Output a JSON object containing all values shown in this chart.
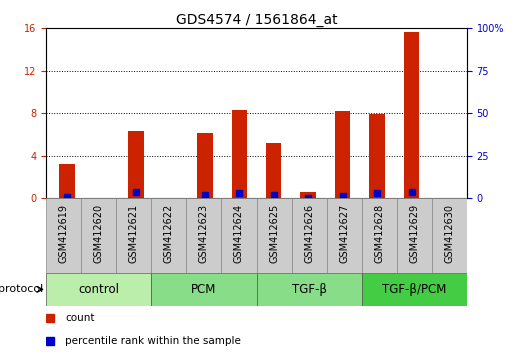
{
  "title": "GDS4574 / 1561864_at",
  "samples": [
    "GSM412619",
    "GSM412620",
    "GSM412621",
    "GSM412622",
    "GSM412623",
    "GSM412624",
    "GSM412625",
    "GSM412626",
    "GSM412627",
    "GSM412628",
    "GSM412629",
    "GSM412630"
  ],
  "count_values": [
    3.2,
    0.05,
    6.3,
    0.05,
    6.1,
    8.3,
    5.2,
    0.6,
    8.2,
    7.9,
    15.7,
    0.05
  ],
  "percentile_values": [
    0.5,
    0.0,
    3.9,
    0.0,
    2.0,
    2.9,
    1.8,
    0.4,
    1.6,
    3.1,
    3.8,
    0.0
  ],
  "bar_color": "#cc2200",
  "marker_color": "#0000cc",
  "ylim_left": [
    0,
    16
  ],
  "ylim_right": [
    0,
    100
  ],
  "yticks_left": [
    0,
    4,
    8,
    12,
    16
  ],
  "yticks_right": [
    0,
    25,
    50,
    75,
    100
  ],
  "groups": [
    {
      "label": "control",
      "start": 0,
      "end": 3,
      "color": "#bbeeaa"
    },
    {
      "label": "PCM",
      "start": 3,
      "end": 6,
      "color": "#88dd88"
    },
    {
      "label": "TGF-β",
      "start": 6,
      "end": 9,
      "color": "#88dd88"
    },
    {
      "label": "TGF-β/PCM",
      "start": 9,
      "end": 12,
      "color": "#44cc44"
    }
  ],
  "protocol_label": "protocol",
  "legend_count": "count",
  "legend_percentile": "percentile rank within the sample",
  "bar_width": 0.45,
  "marker_size": 5,
  "grid_color": "#000000",
  "background_color": "#ffffff",
  "left_tick_color": "#cc2200",
  "right_tick_color": "#0000cc",
  "title_fontsize": 10,
  "tick_label_fontsize": 7,
  "legend_fontsize": 7.5,
  "group_label_fontsize": 8.5
}
